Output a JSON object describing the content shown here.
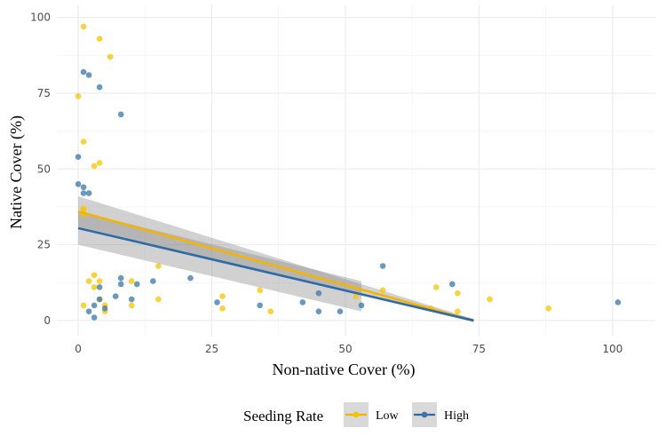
{
  "chart_data": {
    "type": "scatter",
    "title": "",
    "xlabel": "Non-native Cover (%)",
    "ylabel": "Native Cover (%)",
    "xlim": [
      -4,
      108
    ],
    "ylim": [
      -5,
      104
    ],
    "x_ticks": [
      0,
      25,
      50,
      75,
      100
    ],
    "y_ticks": [
      0,
      25,
      50,
      75,
      100
    ],
    "grid": true,
    "legend": {
      "title": "Seeding Rate",
      "position": "bottom"
    },
    "series": [
      {
        "name": "Low",
        "color": "#F5C400",
        "fit_color": "#F5B400",
        "points": [
          [
            1,
            97
          ],
          [
            4,
            93
          ],
          [
            6,
            87
          ],
          [
            0,
            74
          ],
          [
            1,
            59
          ],
          [
            3,
            51
          ],
          [
            4,
            52
          ],
          [
            1,
            37
          ],
          [
            1,
            36
          ],
          [
            1,
            35
          ],
          [
            1,
            5
          ],
          [
            2,
            13
          ],
          [
            3,
            15
          ],
          [
            4,
            13
          ],
          [
            3,
            11
          ],
          [
            4,
            7
          ],
          [
            5,
            5
          ],
          [
            5,
            3
          ],
          [
            10,
            13
          ],
          [
            10,
            5
          ],
          [
            15,
            18
          ],
          [
            15,
            7
          ],
          [
            27,
            8
          ],
          [
            27,
            4
          ],
          [
            34,
            10
          ],
          [
            36,
            3
          ],
          [
            52,
            8
          ],
          [
            57,
            10
          ],
          [
            67,
            11
          ],
          [
            66,
            4
          ],
          [
            71,
            9
          ],
          [
            71,
            3
          ],
          [
            77,
            7
          ],
          [
            88,
            4
          ]
        ],
        "fit": {
          "x0": 0,
          "y0": 36,
          "x1": 74,
          "y1": 0
        },
        "ci_band": {
          "x0": 0,
          "x1": 74,
          "lower0": 31,
          "upper0": 41,
          "lower1": -0.5,
          "upper1": 0.5
        }
      },
      {
        "name": "High",
        "color": "#3A75A8",
        "fit_color": "#2E6AA6",
        "points": [
          [
            1,
            82
          ],
          [
            2,
            81
          ],
          [
            4,
            77
          ],
          [
            8,
            68
          ],
          [
            0,
            54
          ],
          [
            0,
            45
          ],
          [
            1,
            44
          ],
          [
            1,
            42
          ],
          [
            2,
            42
          ],
          [
            2,
            3
          ],
          [
            3,
            1
          ],
          [
            3,
            5
          ],
          [
            4,
            11
          ],
          [
            4,
            7
          ],
          [
            5,
            4
          ],
          [
            7,
            8
          ],
          [
            8,
            14
          ],
          [
            8,
            12
          ],
          [
            10,
            7
          ],
          [
            11,
            12
          ],
          [
            14,
            13
          ],
          [
            21,
            14
          ],
          [
            26,
            6
          ],
          [
            34,
            5
          ],
          [
            42,
            6
          ],
          [
            45,
            3
          ],
          [
            45,
            9
          ],
          [
            49,
            3
          ],
          [
            53,
            5
          ],
          [
            57,
            18
          ],
          [
            70,
            12
          ],
          [
            101,
            6
          ]
        ],
        "fit": {
          "x0": 0,
          "y0": 30.5,
          "x1": 74,
          "y1": 0
        },
        "ci_band": {
          "x0": 0,
          "x1": 53,
          "lower0": 25,
          "upper0": 36,
          "lower1": 3,
          "upper1": 13
        }
      }
    ]
  }
}
